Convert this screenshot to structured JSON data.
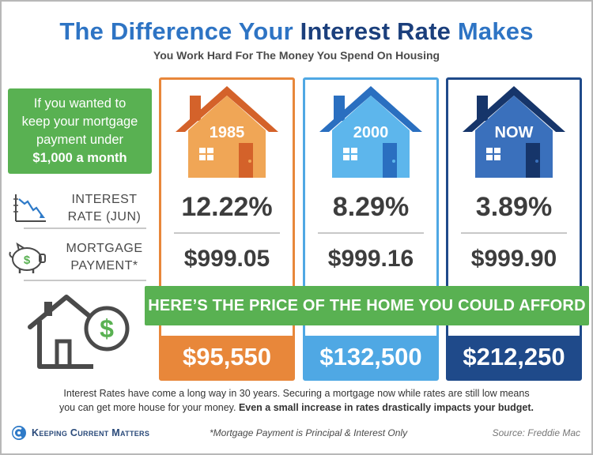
{
  "header": {
    "title_part1": "The Difference Your ",
    "title_part2": "Interest Rate",
    "title_part3": " Makes",
    "subtitle": "You Work Hard For The Money You Spend On Housing"
  },
  "intro": {
    "line1": "If you wanted to",
    "line2": "keep your mortgage",
    "line3": "payment under",
    "line4": "$1,000 a month"
  },
  "rows": {
    "rate_label_1": "INTEREST",
    "rate_label_2": "RATE (JUN)",
    "payment_label_1": "MORTGAGE",
    "payment_label_2": "PAYMENT*"
  },
  "columns": [
    {
      "year": "1985",
      "rate": "12.22%",
      "payment": "$999.05",
      "price": "$95,550",
      "color": "#e8873a",
      "roof": "#e8873a",
      "wall": "#f0a656",
      "door": "#d4622a"
    },
    {
      "year": "2000",
      "rate": "8.29%",
      "payment": "$999.16",
      "price": "$132,500",
      "color": "#4fa8e4",
      "roof": "#3a9ad9",
      "wall": "#5db6ec",
      "door": "#2a6fc0"
    },
    {
      "year": "NOW",
      "rate": "3.89%",
      "payment": "$999.90",
      "price": "$212,250",
      "color": "#1f4a8a",
      "roof": "#2f5ea8",
      "wall": "#3a70bc",
      "door": "#16356a"
    }
  ],
  "banner": "HERE’S THE PRICE OF THE HOME YOU COULD AFFORD",
  "footer": {
    "text1": "Interest Rates have come a long way in 30 years. Securing a mortgage now while rates are still low means",
    "text2a": "you can get more house for your money.",
    "text2b": " Even a small increase in rates drastically impacts your budget.",
    "brand": "Keeping Current Matters",
    "note": "*Mortgage Payment is Principal & Interest Only",
    "source": "Source: Freddie Mac"
  },
  "icons": {
    "rate": "chart-down-icon",
    "payment": "piggy-bank-icon",
    "house": "house-dollar-icon",
    "logo": "kcm-logo-icon"
  }
}
